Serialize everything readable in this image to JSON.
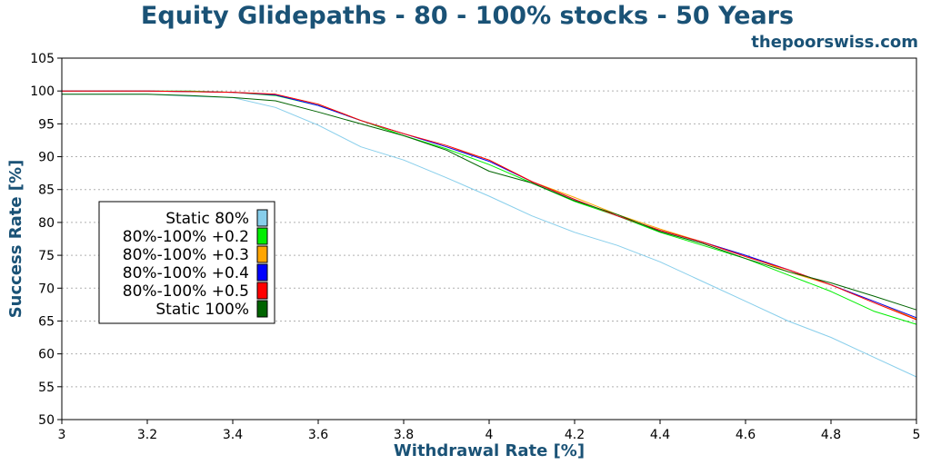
{
  "header": {
    "title": "Equity Glidepaths - 80 - 100% stocks - 50 Years",
    "source": "thepoorswiss.com"
  },
  "colors": {
    "title": "#1a5276",
    "grid": "#b0b0b0",
    "axis": "#000000"
  },
  "chart_data": {
    "type": "line",
    "title": "Equity Glidepaths - 80 - 100% stocks - 50 Years",
    "xlabel": "Withdrawal Rate [%]",
    "ylabel": "Success Rate [%]",
    "xlim": [
      3,
      5
    ],
    "ylim": [
      50,
      105
    ],
    "x_ticks": [
      "3",
      "3.2",
      "3.4",
      "3.6",
      "3.8",
      "4",
      "4.2",
      "4.4",
      "4.6",
      "4.8",
      "5"
    ],
    "y_ticks": [
      "50",
      "55",
      "60",
      "65",
      "70",
      "75",
      "80",
      "85",
      "90",
      "95",
      "100",
      "105"
    ],
    "grid": "horizontal dotted",
    "legend_position": "center-left",
    "x": [
      3.0,
      3.1,
      3.2,
      3.3,
      3.4,
      3.5,
      3.6,
      3.7,
      3.8,
      3.9,
      4.0,
      4.1,
      4.2,
      4.3,
      4.4,
      4.5,
      4.6,
      4.7,
      4.8,
      4.9,
      5.0
    ],
    "series": [
      {
        "name": "Static 80%",
        "color": "#87ceeb",
        "values": [
          99.5,
          99.5,
          99.5,
          99.2,
          99.0,
          97.5,
          94.8,
          91.5,
          89.5,
          86.8,
          84.0,
          81.0,
          78.5,
          76.5,
          74.0,
          71.0,
          68.0,
          65.0,
          62.5,
          59.5,
          56.5
        ]
      },
      {
        "name": "80%-100% +0.2",
        "color": "#00ee00",
        "values": [
          100.0,
          100.0,
          100.0,
          100.0,
          99.8,
          99.3,
          97.8,
          95.5,
          93.2,
          91.2,
          88.8,
          86.0,
          83.2,
          81.0,
          78.5,
          76.5,
          74.5,
          72.0,
          69.5,
          66.5,
          64.5
        ]
      },
      {
        "name": "80%-100% +0.3",
        "color": "#ffa500",
        "values": [
          100.0,
          100.0,
          100.0,
          99.9,
          99.8,
          99.5,
          98.0,
          95.5,
          93.5,
          91.5,
          89.5,
          86.2,
          83.8,
          81.2,
          79.0,
          77.0,
          75.0,
          72.5,
          70.5,
          68.0,
          65.3
        ]
      },
      {
        "name": "80%-100% +0.4",
        "color": "#0000ff",
        "values": [
          100.0,
          100.0,
          100.0,
          99.9,
          99.8,
          99.4,
          97.8,
          95.5,
          93.5,
          91.5,
          89.3,
          86.2,
          83.5,
          81.0,
          78.8,
          77.0,
          75.0,
          72.8,
          70.5,
          68.0,
          65.5
        ]
      },
      {
        "name": "80%-100% +0.5",
        "color": "#ff0000",
        "values": [
          100.0,
          100.0,
          100.0,
          99.9,
          99.8,
          99.5,
          98.0,
          95.5,
          93.5,
          91.7,
          89.5,
          86.2,
          83.5,
          81.0,
          78.8,
          77.0,
          74.8,
          72.8,
          70.5,
          67.8,
          65.2
        ]
      },
      {
        "name": "Static 100%",
        "color": "#006400",
        "values": [
          99.5,
          99.5,
          99.5,
          99.3,
          99.0,
          98.5,
          96.8,
          95.0,
          93.2,
          91.0,
          87.8,
          86.0,
          83.3,
          81.2,
          78.6,
          76.8,
          74.5,
          72.5,
          70.8,
          68.8,
          66.7
        ]
      }
    ]
  }
}
